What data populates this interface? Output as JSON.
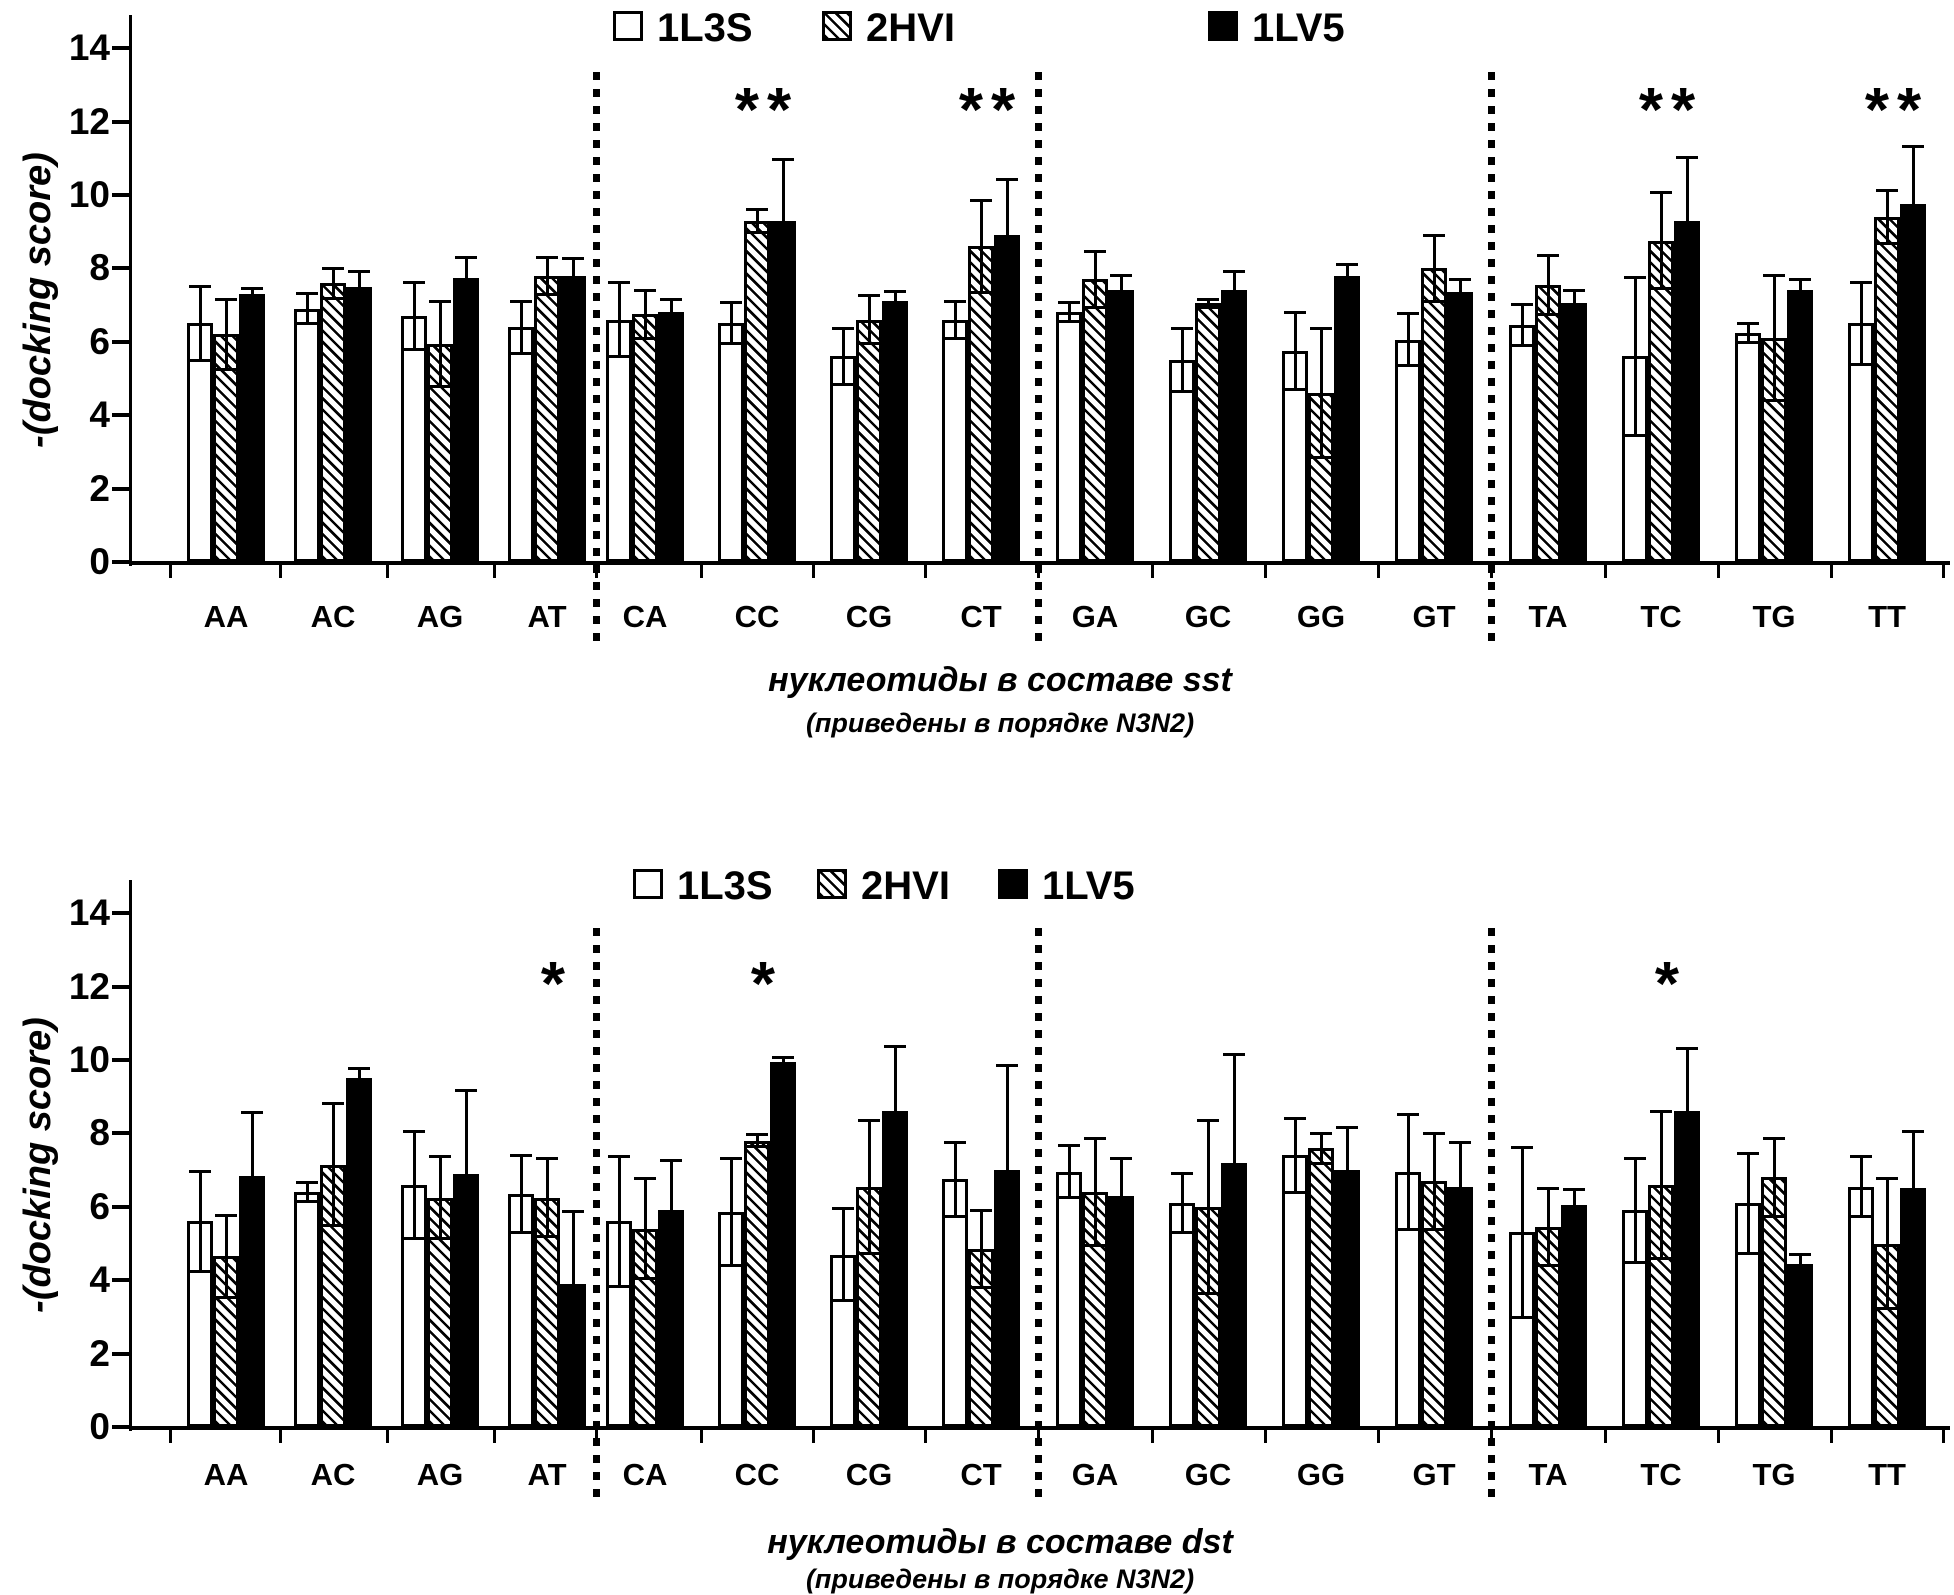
{
  "figure": {
    "background_color": "#ffffff",
    "ink_color": "#000000",
    "ylabel": "-(docking score)"
  },
  "chart_data": [
    {
      "type": "bar",
      "panel_id": "sst",
      "title": "нуклеотиды в составе sst",
      "subtitle": "(приведены в порядке N3N2)",
      "ylabel": "-(docking score)",
      "ylim": [
        0,
        14
      ],
      "yticks": [
        0,
        2,
        4,
        6,
        8,
        10,
        12,
        14
      ],
      "grid": false,
      "legend_position": "top",
      "legend": [
        "1L3S",
        "2HVI",
        "1LV5"
      ],
      "categories": [
        "AA",
        "AC",
        "AG",
        "AT",
        "CA",
        "CC",
        "CG",
        "CT",
        "GA",
        "GC",
        "GG",
        "GT",
        "TA",
        "TC",
        "TG",
        "TT"
      ],
      "group_dividers_after": [
        "AT",
        "CT",
        "GT"
      ],
      "series": [
        {
          "name": "1L3S",
          "style": "open",
          "values": [
            6.5,
            6.9,
            6.7,
            6.4,
            6.6,
            6.5,
            5.6,
            6.6,
            6.8,
            5.5,
            5.75,
            6.05,
            6.45,
            5.6,
            6.25,
            6.5
          ],
          "errors": [
            1.05,
            0.45,
            0.95,
            0.75,
            1.05,
            0.6,
            0.8,
            0.55,
            0.3,
            0.9,
            1.1,
            0.75,
            0.6,
            2.2,
            0.3,
            1.15
          ]
        },
        {
          "name": "2HVI",
          "style": "hatched",
          "values": [
            6.2,
            7.6,
            5.95,
            7.8,
            6.75,
            9.3,
            6.6,
            8.6,
            7.7,
            7.05,
            4.6,
            8.0,
            7.55,
            8.75,
            6.1,
            9.4
          ],
          "errors": [
            1.0,
            0.45,
            1.2,
            0.55,
            0.7,
            0.35,
            0.7,
            1.3,
            0.8,
            0.15,
            1.8,
            0.95,
            0.85,
            1.35,
            1.75,
            0.75
          ]
        },
        {
          "name": "1LV5",
          "style": "solid",
          "values": [
            7.3,
            7.5,
            7.75,
            7.8,
            6.8,
            9.3,
            7.1,
            8.9,
            7.4,
            7.4,
            7.8,
            7.35,
            7.05,
            9.3,
            7.4,
            9.75
          ],
          "errors": [
            0.2,
            0.45,
            0.6,
            0.5,
            0.4,
            1.7,
            0.3,
            1.55,
            0.45,
            0.55,
            0.35,
            0.4,
            0.4,
            1.75,
            0.35,
            1.6
          ]
        }
      ],
      "annotations": [
        {
          "category": "CC",
          "text": "**"
        },
        {
          "category": "CT",
          "text": "**"
        },
        {
          "category": "TC",
          "text": "**"
        },
        {
          "category": "TT",
          "text": "**"
        }
      ]
    },
    {
      "type": "bar",
      "panel_id": "dst",
      "title": "нуклеотиды в составе dst",
      "subtitle": "(приведены в порядке N3N2)",
      "ylabel": "-(docking score)",
      "ylim": [
        0,
        14
      ],
      "yticks": [
        0,
        2,
        4,
        6,
        8,
        10,
        12,
        14
      ],
      "grid": false,
      "legend_position": "top",
      "legend": [
        "1L3S",
        "2HVI",
        "1LV5"
      ],
      "categories": [
        "AA",
        "AC",
        "AG",
        "AT",
        "CA",
        "CC",
        "CG",
        "CT",
        "GA",
        "GC",
        "GG",
        "GT",
        "TA",
        "TC",
        "TG",
        "TT"
      ],
      "group_dividers_after": [
        "AT",
        "CT",
        "GT"
      ],
      "series": [
        {
          "name": "1L3S",
          "style": "open",
          "values": [
            5.6,
            6.4,
            6.6,
            6.35,
            5.6,
            5.85,
            4.7,
            6.75,
            6.95,
            6.1,
            7.4,
            6.95,
            5.3,
            5.9,
            6.1,
            6.55
          ],
          "errors": [
            1.4,
            0.3,
            1.5,
            1.1,
            1.8,
            1.5,
            1.3,
            1.05,
            0.75,
            0.85,
            1.05,
            1.6,
            2.35,
            1.45,
            1.4,
            0.85
          ]
        },
        {
          "name": "2HVI",
          "style": "hatched",
          "values": [
            4.65,
            7.15,
            6.25,
            6.25,
            5.4,
            7.8,
            6.55,
            4.85,
            6.4,
            6.0,
            7.6,
            6.7,
            5.45,
            6.6,
            6.8,
            5.0
          ],
          "errors": [
            1.15,
            1.7,
            1.15,
            1.1,
            1.4,
            0.2,
            1.85,
            1.1,
            1.5,
            2.4,
            0.45,
            1.35,
            1.1,
            2.05,
            1.1,
            1.8
          ]
        },
        {
          "name": "1LV5",
          "style": "solid",
          "values": [
            6.85,
            9.5,
            6.9,
            3.9,
            5.9,
            9.95,
            8.6,
            7.0,
            6.3,
            7.2,
            7.0,
            6.55,
            6.05,
            8.6,
            4.45,
            6.5
          ],
          "errors": [
            1.75,
            0.3,
            2.3,
            2.0,
            1.4,
            0.15,
            1.8,
            2.9,
            1.05,
            3.0,
            1.2,
            1.25,
            0.45,
            1.75,
            0.3,
            1.6
          ]
        }
      ],
      "annotations": [
        {
          "category": "AT",
          "text": "*"
        },
        {
          "category": "CC",
          "text": "*"
        },
        {
          "category": "TC",
          "text": "*"
        }
      ]
    }
  ]
}
